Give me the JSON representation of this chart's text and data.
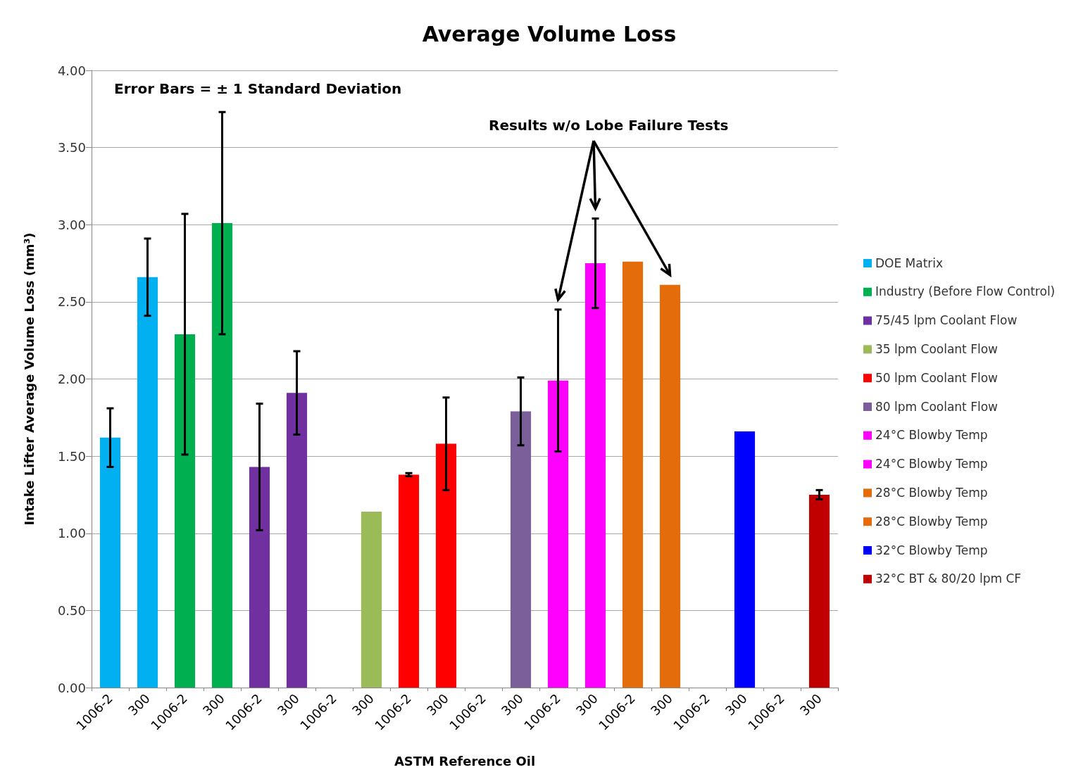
{
  "chart_data": {
    "type": "bar",
    "title": "Average Volume Loss",
    "xlabel": "ASTM Reference Oil",
    "ylabel": "Intake Lifter Average Volume Loss (mm³)",
    "categories": [
      "1006-2",
      "300",
      "1006-2",
      "300",
      "1006-2",
      "300",
      "1006-2",
      "300",
      "1006-2",
      "300",
      "1006-2",
      "300",
      "1006-2",
      "300",
      "1006-2",
      "300",
      "1006-2",
      "300",
      "1006-2",
      "300"
    ],
    "series": [
      {
        "name": "DOE Matrix",
        "color": "#00b0f0",
        "values": [
          1.62,
          2.66,
          null,
          null,
          null,
          null,
          null,
          null,
          null,
          null,
          null,
          null,
          null,
          null,
          null,
          null,
          null,
          null,
          null,
          null
        ],
        "errors": [
          0.19,
          0.25,
          null,
          null,
          null,
          null,
          null,
          null,
          null,
          null,
          null,
          null,
          null,
          null,
          null,
          null,
          null,
          null,
          null,
          null
        ]
      },
      {
        "name": "Industry (Before Flow Control)",
        "color": "#00b050",
        "values": [
          null,
          null,
          2.29,
          3.01,
          null,
          null,
          null,
          null,
          null,
          null,
          null,
          null,
          null,
          null,
          null,
          null,
          null,
          null,
          null,
          null
        ],
        "errors": [
          null,
          null,
          0.78,
          0.72,
          null,
          null,
          null,
          null,
          null,
          null,
          null,
          null,
          null,
          null,
          null,
          null,
          null,
          null,
          null,
          null
        ]
      },
      {
        "name": "75/45 lpm Coolant Flow",
        "color": "#7030a0",
        "values": [
          null,
          null,
          null,
          null,
          1.43,
          1.91,
          null,
          null,
          null,
          null,
          null,
          null,
          null,
          null,
          null,
          null,
          null,
          null,
          null,
          null
        ],
        "errors": [
          null,
          null,
          null,
          null,
          0.41,
          0.27,
          null,
          null,
          null,
          null,
          null,
          null,
          null,
          null,
          null,
          null,
          null,
          null,
          null,
          null
        ]
      },
      {
        "name": "35 lpm Coolant Flow",
        "color": "#9bbb59",
        "values": [
          null,
          null,
          null,
          null,
          null,
          null,
          null,
          1.14,
          null,
          null,
          null,
          null,
          null,
          null,
          null,
          null,
          null,
          null,
          null,
          null
        ]
      },
      {
        "name": "50 lpm Coolant Flow",
        "color": "#ff0000",
        "values": [
          null,
          null,
          null,
          null,
          null,
          null,
          null,
          null,
          1.38,
          1.58,
          null,
          null,
          null,
          null,
          null,
          null,
          null,
          null,
          null,
          null
        ],
        "errors": [
          null,
          null,
          null,
          null,
          null,
          null,
          null,
          null,
          0.01,
          0.3,
          null,
          null,
          null,
          null,
          null,
          null,
          null,
          null,
          null,
          null
        ]
      },
      {
        "name": "80 lpm Coolant Flow",
        "color": "#7b5f9b",
        "values": [
          null,
          null,
          null,
          null,
          null,
          null,
          null,
          null,
          null,
          null,
          null,
          1.79,
          null,
          null,
          null,
          null,
          null,
          null,
          null,
          null
        ],
        "errors": [
          null,
          null,
          null,
          null,
          null,
          null,
          null,
          null,
          null,
          null,
          null,
          0.22,
          null,
          null,
          null,
          null,
          null,
          null,
          null,
          null
        ]
      },
      {
        "name": "24°C Blowby Temp",
        "color": "#ff00ff",
        "values": [
          null,
          null,
          null,
          null,
          null,
          null,
          null,
          null,
          null,
          null,
          null,
          null,
          1.99,
          null,
          null,
          null,
          null,
          null,
          null,
          null
        ],
        "errors": [
          null,
          null,
          null,
          null,
          null,
          null,
          null,
          null,
          null,
          null,
          null,
          null,
          0.46,
          null,
          null,
          null,
          null,
          null,
          null,
          null
        ]
      },
      {
        "name": "24°C Blowby Temp",
        "color": "#ff00ff",
        "values": [
          null,
          null,
          null,
          null,
          null,
          null,
          null,
          null,
          null,
          null,
          null,
          null,
          null,
          2.75,
          null,
          null,
          null,
          null,
          null,
          null
        ],
        "errors": [
          null,
          null,
          null,
          null,
          null,
          null,
          null,
          null,
          null,
          null,
          null,
          null,
          null,
          0.29,
          null,
          null,
          null,
          null,
          null,
          null
        ]
      },
      {
        "name": "28°C Blowby Temp",
        "color": "#e46c0a",
        "values": [
          null,
          null,
          null,
          null,
          null,
          null,
          null,
          null,
          null,
          null,
          null,
          null,
          null,
          null,
          2.76,
          null,
          null,
          null,
          null,
          null
        ]
      },
      {
        "name": "28°C Blowby Temp",
        "color": "#e46c0a",
        "values": [
          null,
          null,
          null,
          null,
          null,
          null,
          null,
          null,
          null,
          null,
          null,
          null,
          null,
          null,
          null,
          2.61,
          null,
          null,
          null,
          null
        ]
      },
      {
        "name": "32°C Blowby Temp",
        "color": "#0000ff",
        "values": [
          null,
          null,
          null,
          null,
          null,
          null,
          null,
          null,
          null,
          null,
          null,
          null,
          null,
          null,
          null,
          null,
          null,
          1.66,
          null,
          null
        ]
      },
      {
        "name": "32°C BT & 80/20 lpm CF",
        "color": "#c00000",
        "values": [
          null,
          null,
          null,
          null,
          null,
          null,
          null,
          null,
          null,
          null,
          null,
          null,
          null,
          null,
          null,
          null,
          null,
          null,
          null,
          1.25
        ],
        "errors": [
          null,
          null,
          null,
          null,
          null,
          null,
          null,
          null,
          null,
          null,
          null,
          null,
          null,
          null,
          null,
          null,
          null,
          null,
          null,
          0.03
        ]
      }
    ],
    "ylim": [
      0,
      4
    ],
    "yticks": [
      {
        "value": 0,
        "label": "0.00"
      },
      {
        "value": 0.5,
        "label": "0.50"
      },
      {
        "value": 1,
        "label": "1.00"
      },
      {
        "value": 1.5,
        "label": "1.50"
      },
      {
        "value": 2,
        "label": "2.00"
      },
      {
        "value": 2.5,
        "label": "2.50"
      },
      {
        "value": 3,
        "label": "3.00"
      },
      {
        "value": 3.5,
        "label": "3.50"
      },
      {
        "value": 4,
        "label": "4.00"
      }
    ],
    "grid": "y",
    "legend": "right",
    "annotations": [
      "Error Bars = ± 1 Standard Deviation",
      "Results w/o Lobe Failure Tests"
    ]
  }
}
